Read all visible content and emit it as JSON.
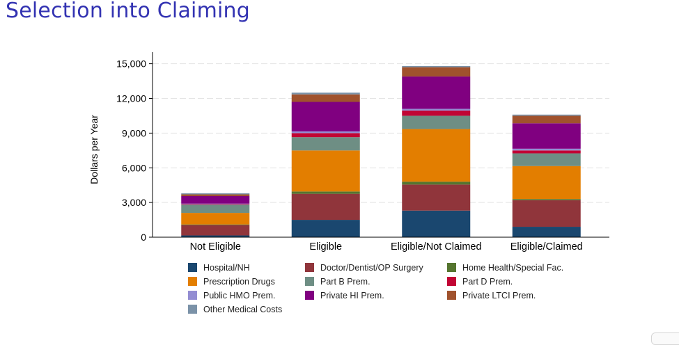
{
  "slide": {
    "title": "Selection into Claiming"
  },
  "chart_data": {
    "type": "bar",
    "stacked": true,
    "title": "",
    "xlabel": "",
    "ylabel": "Dollars per Year",
    "ylim": [
      0,
      16000
    ],
    "yticks": [
      0,
      3000,
      6000,
      9000,
      12000,
      15000
    ],
    "ytick_labels": [
      "0",
      "3,000",
      "6,000",
      "9,000",
      "12,000",
      "15,000"
    ],
    "grid": true,
    "legend_position": "bottom",
    "categories": [
      "Not Eligible",
      "Eligible",
      "Eligible/Not Claimed",
      "Eligible/Claimed"
    ],
    "series": [
      {
        "name": "Hospital/NH",
        "color": "#1a476f",
        "values": [
          150,
          1500,
          2300,
          900
        ]
      },
      {
        "name": "Doctor/Dentist/OP Surgery",
        "color": "#90353b",
        "values": [
          900,
          2250,
          2250,
          2300
        ]
      },
      {
        "name": "Home Health/Special Fac.",
        "color": "#55752f",
        "values": [
          50,
          200,
          250,
          100
        ]
      },
      {
        "name": "Prescription Drugs",
        "color": "#e37e00",
        "values": [
          1000,
          3550,
          4550,
          2850
        ]
      },
      {
        "name": "Part B Prem.",
        "color": "#6e8e84",
        "values": [
          700,
          1150,
          1150,
          1100
        ]
      },
      {
        "name": "Part D Prem.",
        "color": "#c10534",
        "values": [
          50,
          350,
          450,
          250
        ]
      },
      {
        "name": "Public HMO Prem.",
        "color": "#938dd2",
        "values": [
          50,
          150,
          150,
          150
        ]
      },
      {
        "name": "Private HI Prem.",
        "color": "#800080",
        "values": [
          650,
          2550,
          2800,
          2200
        ]
      },
      {
        "name": "Private LTCI Prem.",
        "color": "#a0522d",
        "values": [
          150,
          650,
          800,
          650
        ]
      },
      {
        "name": "Other Medical Costs",
        "color": "#7b92a8",
        "values": [
          100,
          150,
          100,
          100
        ]
      }
    ]
  }
}
